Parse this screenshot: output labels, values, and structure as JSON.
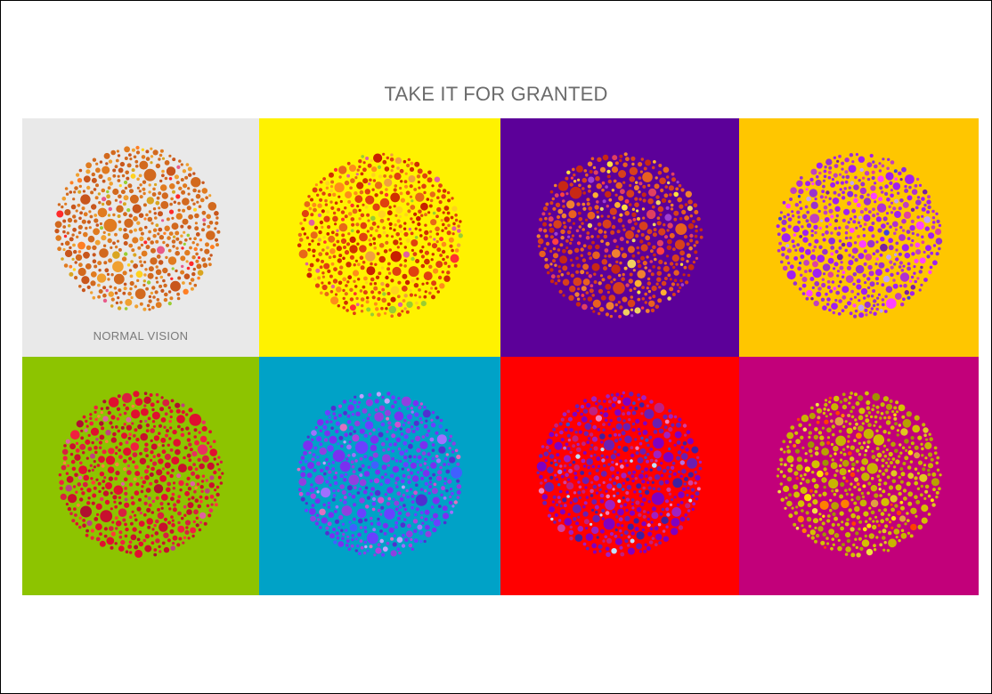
{
  "title": "TAKE IT FOR GRANTED",
  "tiles": [
    {
      "caption": "NORMAL VISION",
      "background": "#e9e9e9",
      "dot_colors": [
        "#d2691e",
        "#e07b20",
        "#c8561c",
        "#f0a030",
        "#d9a520",
        "#ff2a2a",
        "#ff7f24",
        "#ffd21e",
        "#e85a8a",
        "#9acd32"
      ]
    },
    {
      "caption": "",
      "background": "#fff200",
      "dot_colors": [
        "#e04010",
        "#d03000",
        "#e86818",
        "#ff8c1a",
        "#c82000",
        "#f0a040",
        "#ff3030",
        "#ffd21e",
        "#9acd32",
        "#e060a0"
      ]
    },
    {
      "caption": "",
      "background": "#5c0099",
      "dot_colors": [
        "#d8401c",
        "#e86020",
        "#c82814",
        "#f08030",
        "#e04060",
        "#ffb030",
        "#ffe040",
        "#ff4040",
        "#a040d0",
        "#f0d060"
      ]
    },
    {
      "caption": "",
      "background": "#ffc600",
      "dot_colors": [
        "#a020f0",
        "#9a32cd",
        "#b030d0",
        "#c040c0",
        "#ff40ff",
        "#8a2be2",
        "#7b1fa2",
        "#e040a0",
        "#4040e0",
        "#c0a0ff"
      ]
    },
    {
      "caption": "",
      "background": "#8dc400",
      "dot_colors": [
        "#e01030",
        "#c8102e",
        "#d82040",
        "#f02040",
        "#b01030",
        "#e83060",
        "#ff3a3a",
        "#e060a0",
        "#ff8040",
        "#c04080"
      ]
    },
    {
      "caption": "",
      "background": "#00a2c7",
      "dot_colors": [
        "#7a30f0",
        "#6a40ff",
        "#9040e0",
        "#5030d0",
        "#b040e0",
        "#d050d0",
        "#4060ff",
        "#a070ff",
        "#e070c0",
        "#c0a0ff"
      ]
    },
    {
      "caption": "",
      "background": "#ff0000",
      "dot_colors": [
        "#8000c0",
        "#6a1fb0",
        "#a020c0",
        "#c02080",
        "#4020a0",
        "#d040a0",
        "#3050d0",
        "#b070e0",
        "#f080c0",
        "#c0e0ff"
      ]
    },
    {
      "caption": "",
      "background": "#c2007a",
      "dot_colors": [
        "#c8b400",
        "#d4c000",
        "#b8a000",
        "#e0c820",
        "#a09000",
        "#f0e040",
        "#ffe000",
        "#ff8000",
        "#ff4000",
        "#e0a040"
      ]
    }
  ]
}
